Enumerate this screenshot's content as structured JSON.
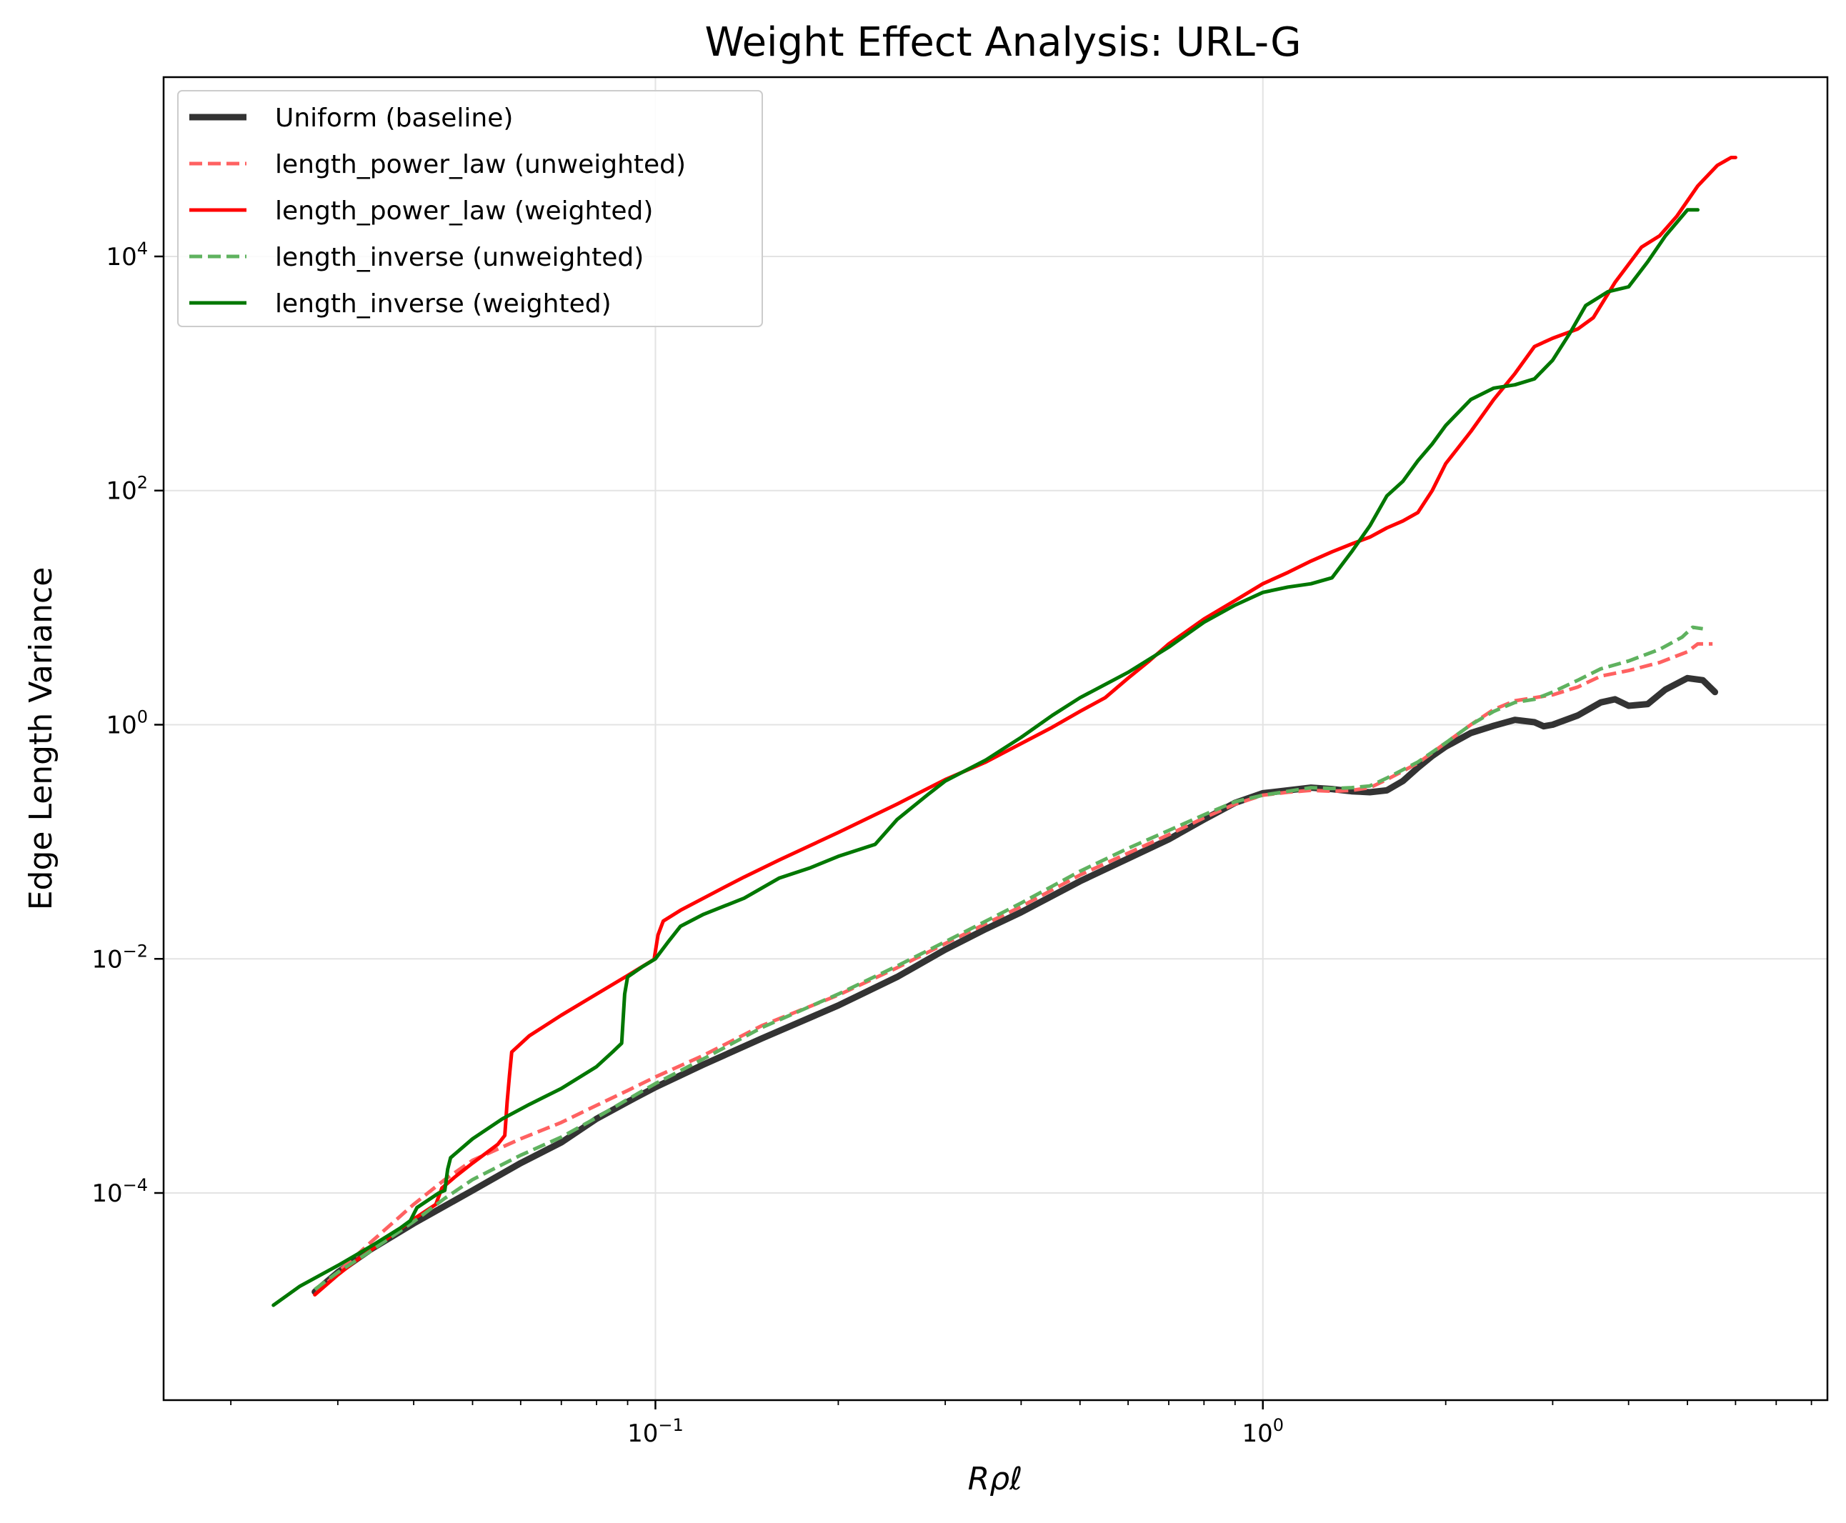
{
  "chart_data": {
    "type": "line",
    "title": "Weight Effect Analysis: URL-G",
    "xlabel": "Rρℓ",
    "ylabel": "Edge Length Variance",
    "xscale": "log",
    "yscale": "log",
    "xlim": [
      0.0155,
      8.5
    ],
    "ylim": [
      1.7e-06,
      340000
    ],
    "xticks": [
      {
        "base": "10",
        "exp": "−1",
        "value": 0.1
      },
      {
        "base": "10",
        "exp": "0",
        "value": 1
      }
    ],
    "yticks": [
      {
        "base": "10",
        "exp": "−4",
        "value": 0.0001
      },
      {
        "base": "10",
        "exp": "−2",
        "value": 0.01
      },
      {
        "base": "10",
        "exp": "0",
        "value": 1
      },
      {
        "base": "10",
        "exp": "2",
        "value": 100
      },
      {
        "base": "10",
        "exp": "4",
        "value": 10000
      }
    ],
    "grid": true,
    "legend_position": "upper-left",
    "series": [
      {
        "name": "Uniform (baseline)",
        "color": "#333333",
        "style": "solid",
        "width": 9,
        "opacity": 1,
        "points": [
          [
            0.0275,
            1.43e-05
          ],
          [
            0.03,
            2.1e-05
          ],
          [
            0.034,
            3.3e-05
          ],
          [
            0.04,
            5.5e-05
          ],
          [
            0.05,
            0.000105
          ],
          [
            0.06,
            0.00018
          ],
          [
            0.07,
            0.00027
          ],
          [
            0.08,
            0.00043
          ],
          [
            0.09,
            0.0006
          ],
          [
            0.1,
            0.0008
          ],
          [
            0.12,
            0.00125
          ],
          [
            0.15,
            0.0021
          ],
          [
            0.2,
            0.004
          ],
          [
            0.25,
            0.007
          ],
          [
            0.3,
            0.012
          ],
          [
            0.35,
            0.018
          ],
          [
            0.4,
            0.025
          ],
          [
            0.5,
            0.046
          ],
          [
            0.6,
            0.072
          ],
          [
            0.7,
            0.105
          ],
          [
            0.8,
            0.155
          ],
          [
            0.9,
            0.215
          ],
          [
            1.0,
            0.26
          ],
          [
            1.1,
            0.275
          ],
          [
            1.2,
            0.29
          ],
          [
            1.3,
            0.282
          ],
          [
            1.4,
            0.27
          ],
          [
            1.5,
            0.265
          ],
          [
            1.6,
            0.275
          ],
          [
            1.7,
            0.33
          ],
          [
            1.8,
            0.43
          ],
          [
            1.9,
            0.54
          ],
          [
            2.0,
            0.65
          ],
          [
            2.2,
            0.85
          ],
          [
            2.4,
            0.98
          ],
          [
            2.6,
            1.1
          ],
          [
            2.8,
            1.05
          ],
          [
            2.9,
            0.97
          ],
          [
            3.0,
            1.0
          ],
          [
            3.3,
            1.2
          ],
          [
            3.6,
            1.55
          ],
          [
            3.8,
            1.65
          ],
          [
            4.0,
            1.45
          ],
          [
            4.3,
            1.5
          ],
          [
            4.6,
            2.0
          ],
          [
            5.0,
            2.5
          ],
          [
            5.3,
            2.4
          ],
          [
            5.55,
            1.9
          ]
        ]
      },
      {
        "name": "length_power_law (unweighted)",
        "color": "#ff6161",
        "style": "dashed",
        "width": 5,
        "opacity": 1,
        "points": [
          [
            0.0275,
            1.35e-05
          ],
          [
            0.03,
            2.1e-05
          ],
          [
            0.034,
            3.8e-05
          ],
          [
            0.04,
            8e-05
          ],
          [
            0.045,
            0.00013
          ],
          [
            0.05,
            0.00019
          ],
          [
            0.06,
            0.00029
          ],
          [
            0.07,
            0.0004
          ],
          [
            0.08,
            0.00056
          ],
          [
            0.09,
            0.00075
          ],
          [
            0.1,
            0.00098
          ],
          [
            0.12,
            0.0015
          ],
          [
            0.15,
            0.0027
          ],
          [
            0.2,
            0.0049
          ],
          [
            0.25,
            0.0084
          ],
          [
            0.3,
            0.0135
          ],
          [
            0.35,
            0.02
          ],
          [
            0.4,
            0.028
          ],
          [
            0.5,
            0.052
          ],
          [
            0.6,
            0.08
          ],
          [
            0.7,
            0.115
          ],
          [
            0.8,
            0.16
          ],
          [
            0.9,
            0.21
          ],
          [
            1.0,
            0.25
          ],
          [
            1.1,
            0.265
          ],
          [
            1.2,
            0.275
          ],
          [
            1.3,
            0.27
          ],
          [
            1.4,
            0.275
          ],
          [
            1.5,
            0.29
          ],
          [
            1.6,
            0.34
          ],
          [
            1.8,
            0.47
          ],
          [
            2.0,
            0.7
          ],
          [
            2.2,
            1.0
          ],
          [
            2.4,
            1.35
          ],
          [
            2.6,
            1.6
          ],
          [
            2.8,
            1.7
          ],
          [
            3.0,
            1.8
          ],
          [
            3.3,
            2.1
          ],
          [
            3.6,
            2.6
          ],
          [
            4.0,
            2.9
          ],
          [
            4.5,
            3.4
          ],
          [
            5.0,
            4.2
          ],
          [
            5.2,
            4.9
          ],
          [
            5.5,
            4.9
          ]
        ]
      },
      {
        "name": "length_power_law (weighted)",
        "color": "#ff0000",
        "style": "solid",
        "width": 5,
        "opacity": 1,
        "points": [
          [
            0.0275,
            1.35e-05
          ],
          [
            0.03,
            2e-05
          ],
          [
            0.032,
            2.6e-05
          ],
          [
            0.036,
            4e-05
          ],
          [
            0.04,
            6e-05
          ],
          [
            0.0435,
            8e-05
          ],
          [
            0.0445,
            0.00011
          ],
          [
            0.047,
            0.00014
          ],
          [
            0.05,
            0.00018
          ],
          [
            0.055,
            0.00026
          ],
          [
            0.0565,
            0.00031
          ],
          [
            0.057,
            0.0006
          ],
          [
            0.0575,
            0.001
          ],
          [
            0.058,
            0.0016
          ],
          [
            0.062,
            0.0022
          ],
          [
            0.07,
            0.0033
          ],
          [
            0.08,
            0.005
          ],
          [
            0.09,
            0.0072
          ],
          [
            0.0995,
            0.0099
          ],
          [
            0.101,
            0.016
          ],
          [
            0.103,
            0.021
          ],
          [
            0.11,
            0.026
          ],
          [
            0.12,
            0.033
          ],
          [
            0.13,
            0.041
          ],
          [
            0.14,
            0.05
          ],
          [
            0.16,
            0.07
          ],
          [
            0.18,
            0.093
          ],
          [
            0.2,
            0.12
          ],
          [
            0.25,
            0.21
          ],
          [
            0.3,
            0.34
          ],
          [
            0.35,
            0.48
          ],
          [
            0.4,
            0.69
          ],
          [
            0.45,
            0.95
          ],
          [
            0.5,
            1.3
          ],
          [
            0.55,
            1.7
          ],
          [
            0.6,
            2.5
          ],
          [
            0.65,
            3.5
          ],
          [
            0.7,
            4.9
          ],
          [
            0.8,
            8.0
          ],
          [
            0.9,
            11.5
          ],
          [
            1.0,
            16.0
          ],
          [
            1.1,
            20.0
          ],
          [
            1.2,
            25.0
          ],
          [
            1.3,
            30.0
          ],
          [
            1.4,
            35.0
          ],
          [
            1.5,
            40.0
          ],
          [
            1.6,
            48.0
          ],
          [
            1.7,
            55.0
          ],
          [
            1.8,
            65.0
          ],
          [
            1.9,
            100.0
          ],
          [
            2.0,
            170.0
          ],
          [
            2.2,
            320.0
          ],
          [
            2.4,
            600.0
          ],
          [
            2.6,
            1000.0
          ],
          [
            2.8,
            1700.0
          ],
          [
            3.0,
            2000.0
          ],
          [
            3.3,
            2400.0
          ],
          [
            3.5,
            3000.0
          ],
          [
            3.8,
            6000.0
          ],
          [
            4.2,
            12000
          ],
          [
            4.5,
            15000
          ],
          [
            4.8,
            22000
          ],
          [
            5.2,
            40000
          ],
          [
            5.6,
            60000
          ],
          [
            5.9,
            70000
          ],
          [
            6.0,
            70000
          ]
        ]
      },
      {
        "name": "length_inverse (unweighted)",
        "color": "#5fb25f",
        "style": "dashed",
        "width": 5,
        "opacity": 1,
        "points": [
          [
            0.0275,
            1.5e-05
          ],
          [
            0.03,
            2.1e-05
          ],
          [
            0.034,
            3.2e-05
          ],
          [
            0.04,
            5.7e-05
          ],
          [
            0.045,
            9e-05
          ],
          [
            0.05,
            0.00013
          ],
          [
            0.06,
            0.00021
          ],
          [
            0.07,
            0.0003
          ],
          [
            0.08,
            0.00044
          ],
          [
            0.09,
            0.00063
          ],
          [
            0.1,
            0.00086
          ],
          [
            0.12,
            0.0014
          ],
          [
            0.15,
            0.0026
          ],
          [
            0.2,
            0.005
          ],
          [
            0.25,
            0.0087
          ],
          [
            0.3,
            0.014
          ],
          [
            0.35,
            0.021
          ],
          [
            0.4,
            0.03
          ],
          [
            0.5,
            0.056
          ],
          [
            0.6,
            0.088
          ],
          [
            0.7,
            0.125
          ],
          [
            0.8,
            0.17
          ],
          [
            0.9,
            0.22
          ],
          [
            1.0,
            0.25
          ],
          [
            1.1,
            0.27
          ],
          [
            1.2,
            0.29
          ],
          [
            1.3,
            0.285
          ],
          [
            1.4,
            0.29
          ],
          [
            1.5,
            0.3
          ],
          [
            1.6,
            0.35
          ],
          [
            1.8,
            0.48
          ],
          [
            2.0,
            0.7
          ],
          [
            2.2,
            1.0
          ],
          [
            2.4,
            1.3
          ],
          [
            2.6,
            1.55
          ],
          [
            2.8,
            1.65
          ],
          [
            3.0,
            1.9
          ],
          [
            3.3,
            2.4
          ],
          [
            3.6,
            3.0
          ],
          [
            4.0,
            3.5
          ],
          [
            4.5,
            4.4
          ],
          [
            4.9,
            5.6
          ],
          [
            5.1,
            6.8
          ],
          [
            5.3,
            6.6
          ]
        ]
      },
      {
        "name": "length_inverse (weighted)",
        "color": "#007700",
        "style": "solid",
        "width": 5,
        "opacity": 1,
        "points": [
          [
            0.0235,
            1.1e-05
          ],
          [
            0.026,
            1.6e-05
          ],
          [
            0.03,
            2.4e-05
          ],
          [
            0.034,
            3.5e-05
          ],
          [
            0.038,
            5e-05
          ],
          [
            0.0395,
            5.8e-05
          ],
          [
            0.0405,
            7.5e-05
          ],
          [
            0.044,
            0.0001
          ],
          [
            0.045,
            0.000105
          ],
          [
            0.0455,
            0.00016
          ],
          [
            0.046,
            0.0002
          ],
          [
            0.05,
            0.00029
          ],
          [
            0.056,
            0.00043
          ],
          [
            0.062,
            0.00057
          ],
          [
            0.07,
            0.00078
          ],
          [
            0.08,
            0.0012
          ],
          [
            0.085,
            0.0016
          ],
          [
            0.088,
            0.0019
          ],
          [
            0.089,
            0.005
          ],
          [
            0.09,
            0.007
          ],
          [
            0.095,
            0.0085
          ],
          [
            0.1,
            0.01
          ],
          [
            0.105,
            0.014
          ],
          [
            0.11,
            0.019
          ],
          [
            0.12,
            0.024
          ],
          [
            0.14,
            0.033
          ],
          [
            0.16,
            0.049
          ],
          [
            0.18,
            0.06
          ],
          [
            0.2,
            0.075
          ],
          [
            0.23,
            0.095
          ],
          [
            0.25,
            0.155
          ],
          [
            0.28,
            0.25
          ],
          [
            0.3,
            0.33
          ],
          [
            0.35,
            0.5
          ],
          [
            0.4,
            0.78
          ],
          [
            0.45,
            1.2
          ],
          [
            0.5,
            1.7
          ],
          [
            0.6,
            2.8
          ],
          [
            0.7,
            4.6
          ],
          [
            0.8,
            7.5
          ],
          [
            0.9,
            10.5
          ],
          [
            1.0,
            13.5
          ],
          [
            1.1,
            15.0
          ],
          [
            1.2,
            16.0
          ],
          [
            1.3,
            18.0
          ],
          [
            1.4,
            30.0
          ],
          [
            1.5,
            50.0
          ],
          [
            1.6,
            90.0
          ],
          [
            1.7,
            120.0
          ],
          [
            1.8,
            180.0
          ],
          [
            1.9,
            250.0
          ],
          [
            2.0,
            360.0
          ],
          [
            2.2,
            600.0
          ],
          [
            2.4,
            750.0
          ],
          [
            2.6,
            800.0
          ],
          [
            2.8,
            900.0
          ],
          [
            3.0,
            1300.0
          ],
          [
            3.2,
            2200.0
          ],
          [
            3.4,
            3800.0
          ],
          [
            3.7,
            5000.0
          ],
          [
            4.0,
            5500.0
          ],
          [
            4.3,
            9000.0
          ],
          [
            4.6,
            15000
          ],
          [
            5.0,
            25000
          ],
          [
            5.2,
            25000
          ]
        ]
      }
    ]
  }
}
